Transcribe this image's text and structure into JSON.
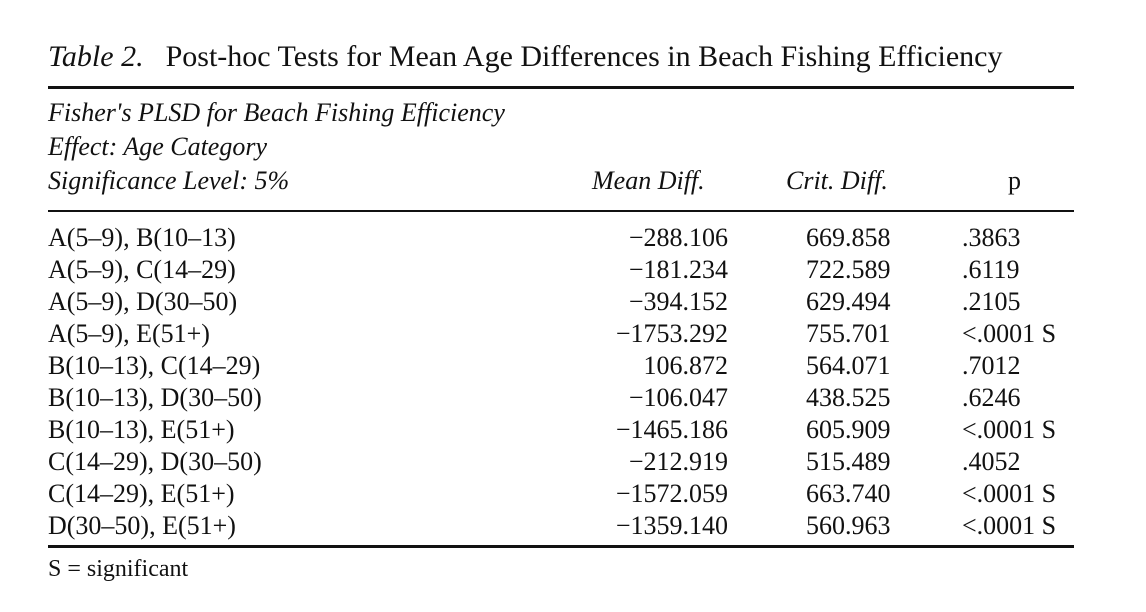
{
  "caption": {
    "label": "Table 2.",
    "title": "Post-hoc Tests for Mean Age Differences in Beach Fishing Efficiency"
  },
  "header": {
    "line1": "Fisher's PLSD for Beach Fishing Efficiency",
    "line2": "Effect: Age Category",
    "line3": "Significance Level: 5%",
    "columns": {
      "mean_diff": "Mean Diff.",
      "crit_diff": "Crit. Diff.",
      "p": "p"
    }
  },
  "rows": [
    {
      "pair": "A(5–9), B(10–13)",
      "mean_diff": "−288.106",
      "crit_diff": "669.858",
      "p": ".3863"
    },
    {
      "pair": "A(5–9), C(14–29)",
      "mean_diff": "−181.234",
      "crit_diff": "722.589",
      "p": ".6119"
    },
    {
      "pair": "A(5–9), D(30–50)",
      "mean_diff": "−394.152",
      "crit_diff": "629.494",
      "p": ".2105"
    },
    {
      "pair": "A(5–9), E(51+)",
      "mean_diff": "−1753.292",
      "crit_diff": "755.701",
      "p": "<.0001 S"
    },
    {
      "pair": "B(10–13), C(14–29)",
      "mean_diff": "106.872",
      "crit_diff": "564.071",
      "p": ".7012"
    },
    {
      "pair": "B(10–13), D(30–50)",
      "mean_diff": "−106.047",
      "crit_diff": "438.525",
      "p": ".6246"
    },
    {
      "pair": "B(10–13), E(51+)",
      "mean_diff": "−1465.186",
      "crit_diff": "605.909",
      "p": "<.0001 S"
    },
    {
      "pair": "C(14–29), D(30–50)",
      "mean_diff": "−212.919",
      "crit_diff": "515.489",
      "p": ".4052"
    },
    {
      "pair": "C(14–29), E(51+)",
      "mean_diff": "−1572.059",
      "crit_diff": "663.740",
      "p": "<.0001 S"
    },
    {
      "pair": "D(30–50), E(51+)",
      "mean_diff": "−1359.140",
      "crit_diff": "560.963",
      "p": "<.0001 S"
    }
  ],
  "footnote": "S = significant"
}
